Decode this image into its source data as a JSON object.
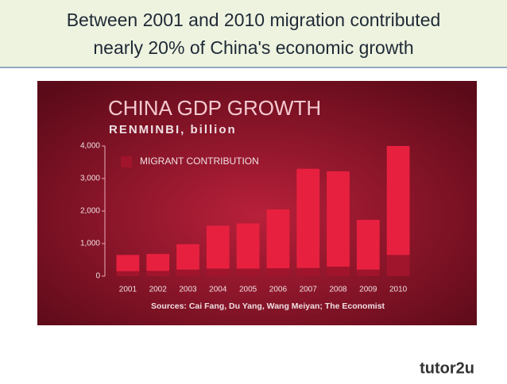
{
  "header": {
    "lines": [
      "Between 2001 and 2010 migration contributed",
      "nearly 20% of China's economic growth"
    ]
  },
  "chart_data": {
    "type": "stacked-bar",
    "title": "CHINA GDP GROWTH",
    "subtitle": "RENMINBI, billion",
    "categories": [
      "2001",
      "2002",
      "2003",
      "2004",
      "2005",
      "2006",
      "2007",
      "2008",
      "2009",
      "2010"
    ],
    "series": [
      {
        "name": "MIGRANT CONTRIBUTION",
        "color": "#a0142c",
        "values": [
          150,
          160,
          200,
          230,
          230,
          240,
          250,
          290,
          200,
          650
        ]
      },
      {
        "color": "#e8203f",
        "values": [
          500,
          520,
          780,
          1320,
          1390,
          1810,
          3050,
          2930,
          1530,
          3350
        ]
      }
    ],
    "ylim": [
      0,
      4000
    ],
    "yticks": [
      0,
      {
        "value": 1000,
        "label": "1,000"
      },
      {
        "value": 2000,
        "label": "2,000"
      },
      {
        "value": 3000,
        "label": "3,000"
      },
      {
        "value": 4000,
        "label": "4,000"
      }
    ],
    "source": "Sources: Cai Fang, Du Yang, Wang Meiyan; The Economist"
  },
  "footer": {
    "logo": "tutor2u"
  }
}
